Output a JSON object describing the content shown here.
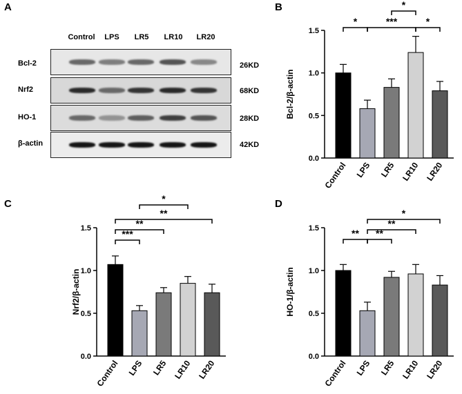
{
  "panel_letters": [
    "A",
    "B",
    "C",
    "D"
  ],
  "blot": {
    "lanes": [
      "Control",
      "LPS",
      "LR5",
      "LR10",
      "LR20"
    ],
    "rows": [
      {
        "protein": "Bcl-2",
        "kd": "26KD",
        "intensity": [
          0.55,
          0.45,
          0.55,
          0.65,
          0.4
        ]
      },
      {
        "protein": "Nrf2",
        "kd": "68KD",
        "intensity": [
          0.85,
          0.55,
          0.8,
          0.85,
          0.8
        ]
      },
      {
        "protein": "HO-1",
        "kd": "28KD",
        "intensity": [
          0.55,
          0.35,
          0.6,
          0.75,
          0.65
        ]
      },
      {
        "protein": "β-actin",
        "kd": "42KD",
        "intensity": [
          0.95,
          0.95,
          0.95,
          0.95,
          0.95
        ]
      }
    ]
  },
  "bar_colors": [
    "#000000",
    "#a6a8b4",
    "#7a7a7a",
    "#d2d2d2",
    "#595959"
  ],
  "chart_data": [
    {
      "type": "bar",
      "panel": "B",
      "categories": [
        "Control",
        "LPS",
        "LR5",
        "LR10",
        "LR20"
      ],
      "values": [
        1.0,
        0.58,
        0.83,
        1.24,
        0.79
      ],
      "errors": [
        0.1,
        0.1,
        0.1,
        0.19,
        0.11
      ],
      "ylabel": "Bcl-2/β-actin",
      "ylim": [
        0,
        1.5
      ],
      "yticks": [
        "0.0",
        "0.5",
        "1.0",
        "1.5"
      ],
      "significance": [
        {
          "from": 0,
          "to": 1,
          "label": "*"
        },
        {
          "from": 1,
          "to": 3,
          "label": "***"
        },
        {
          "from": 2,
          "to": 3,
          "label": "*"
        },
        {
          "from": 3,
          "to": 4,
          "label": "*"
        }
      ]
    },
    {
      "type": "bar",
      "panel": "C",
      "categories": [
        "Control",
        "LPS",
        "LR5",
        "LR10",
        "LR20"
      ],
      "values": [
        1.07,
        0.53,
        0.74,
        0.85,
        0.74
      ],
      "errors": [
        0.1,
        0.06,
        0.06,
        0.08,
        0.1
      ],
      "ylabel": "Nrf2/β-actin",
      "ylim": [
        0,
        1.5
      ],
      "yticks": [
        "0.0",
        "0.5",
        "1.0",
        "1.5"
      ],
      "significance": [
        {
          "from": 0,
          "to": 1,
          "label": "***"
        },
        {
          "from": 0,
          "to": 2,
          "label": "**"
        },
        {
          "from": 0,
          "to": 4,
          "label": "**"
        },
        {
          "from": 1,
          "to": 3,
          "label": "*"
        }
      ]
    },
    {
      "type": "bar",
      "panel": "D",
      "categories": [
        "Control",
        "LPS",
        "LR5",
        "LR10",
        "LR20"
      ],
      "values": [
        1.0,
        0.53,
        0.92,
        0.96,
        0.83
      ],
      "errors": [
        0.07,
        0.1,
        0.07,
        0.11,
        0.11
      ],
      "ylabel": "HO-1/β-actin",
      "ylim": [
        0,
        1.5
      ],
      "yticks": [
        "0.0",
        "0.5",
        "1.0",
        "1.5"
      ],
      "significance": [
        {
          "from": 0,
          "to": 1,
          "label": "**"
        },
        {
          "from": 1,
          "to": 2,
          "label": "**"
        },
        {
          "from": 1,
          "to": 3,
          "label": "**"
        },
        {
          "from": 1,
          "to": 4,
          "label": "*"
        }
      ]
    }
  ]
}
